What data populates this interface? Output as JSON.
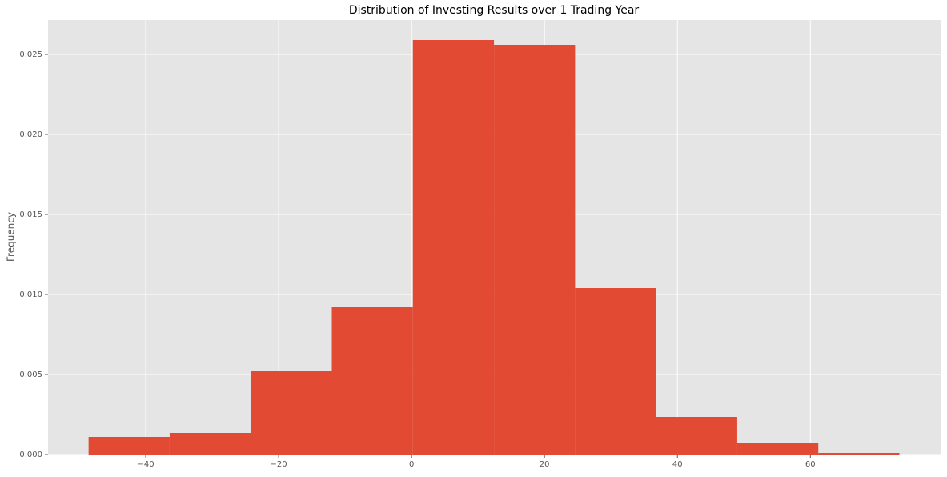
{
  "chart_data": {
    "type": "histogram",
    "title": "Distribution of Investing Results over 1 Trading Year",
    "y_label": "Frequency",
    "bins": [
      -48.6,
      -36.4,
      -24.2,
      -12.0,
      0.2,
      12.4,
      24.6,
      36.8,
      49.0,
      61.2,
      73.4
    ],
    "values": [
      0.0011,
      0.00135,
      0.0052,
      0.00925,
      0.0259,
      0.0256,
      0.0104,
      0.00235,
      0.0007,
      0.0001
    ],
    "color": "#e24a33",
    "xlim": [
      -54.7,
      79.6
    ],
    "xticks": [
      {
        "value": -40,
        "label": "−40"
      },
      {
        "value": -20,
        "label": "−20"
      },
      0,
      20,
      40,
      60
    ],
    "ylim": [
      0,
      0.02715
    ],
    "yticks": [
      {
        "value": 0,
        "label": "0.000"
      },
      {
        "value": 0.005,
        "label": "0.005"
      },
      {
        "value": 0.01,
        "label": "0.010"
      },
      {
        "value": 0.015,
        "label": "0.015"
      },
      {
        "value": 0.02,
        "label": "0.020"
      },
      {
        "value": 0.025,
        "label": "0.025"
      }
    ],
    "grid": true
  }
}
